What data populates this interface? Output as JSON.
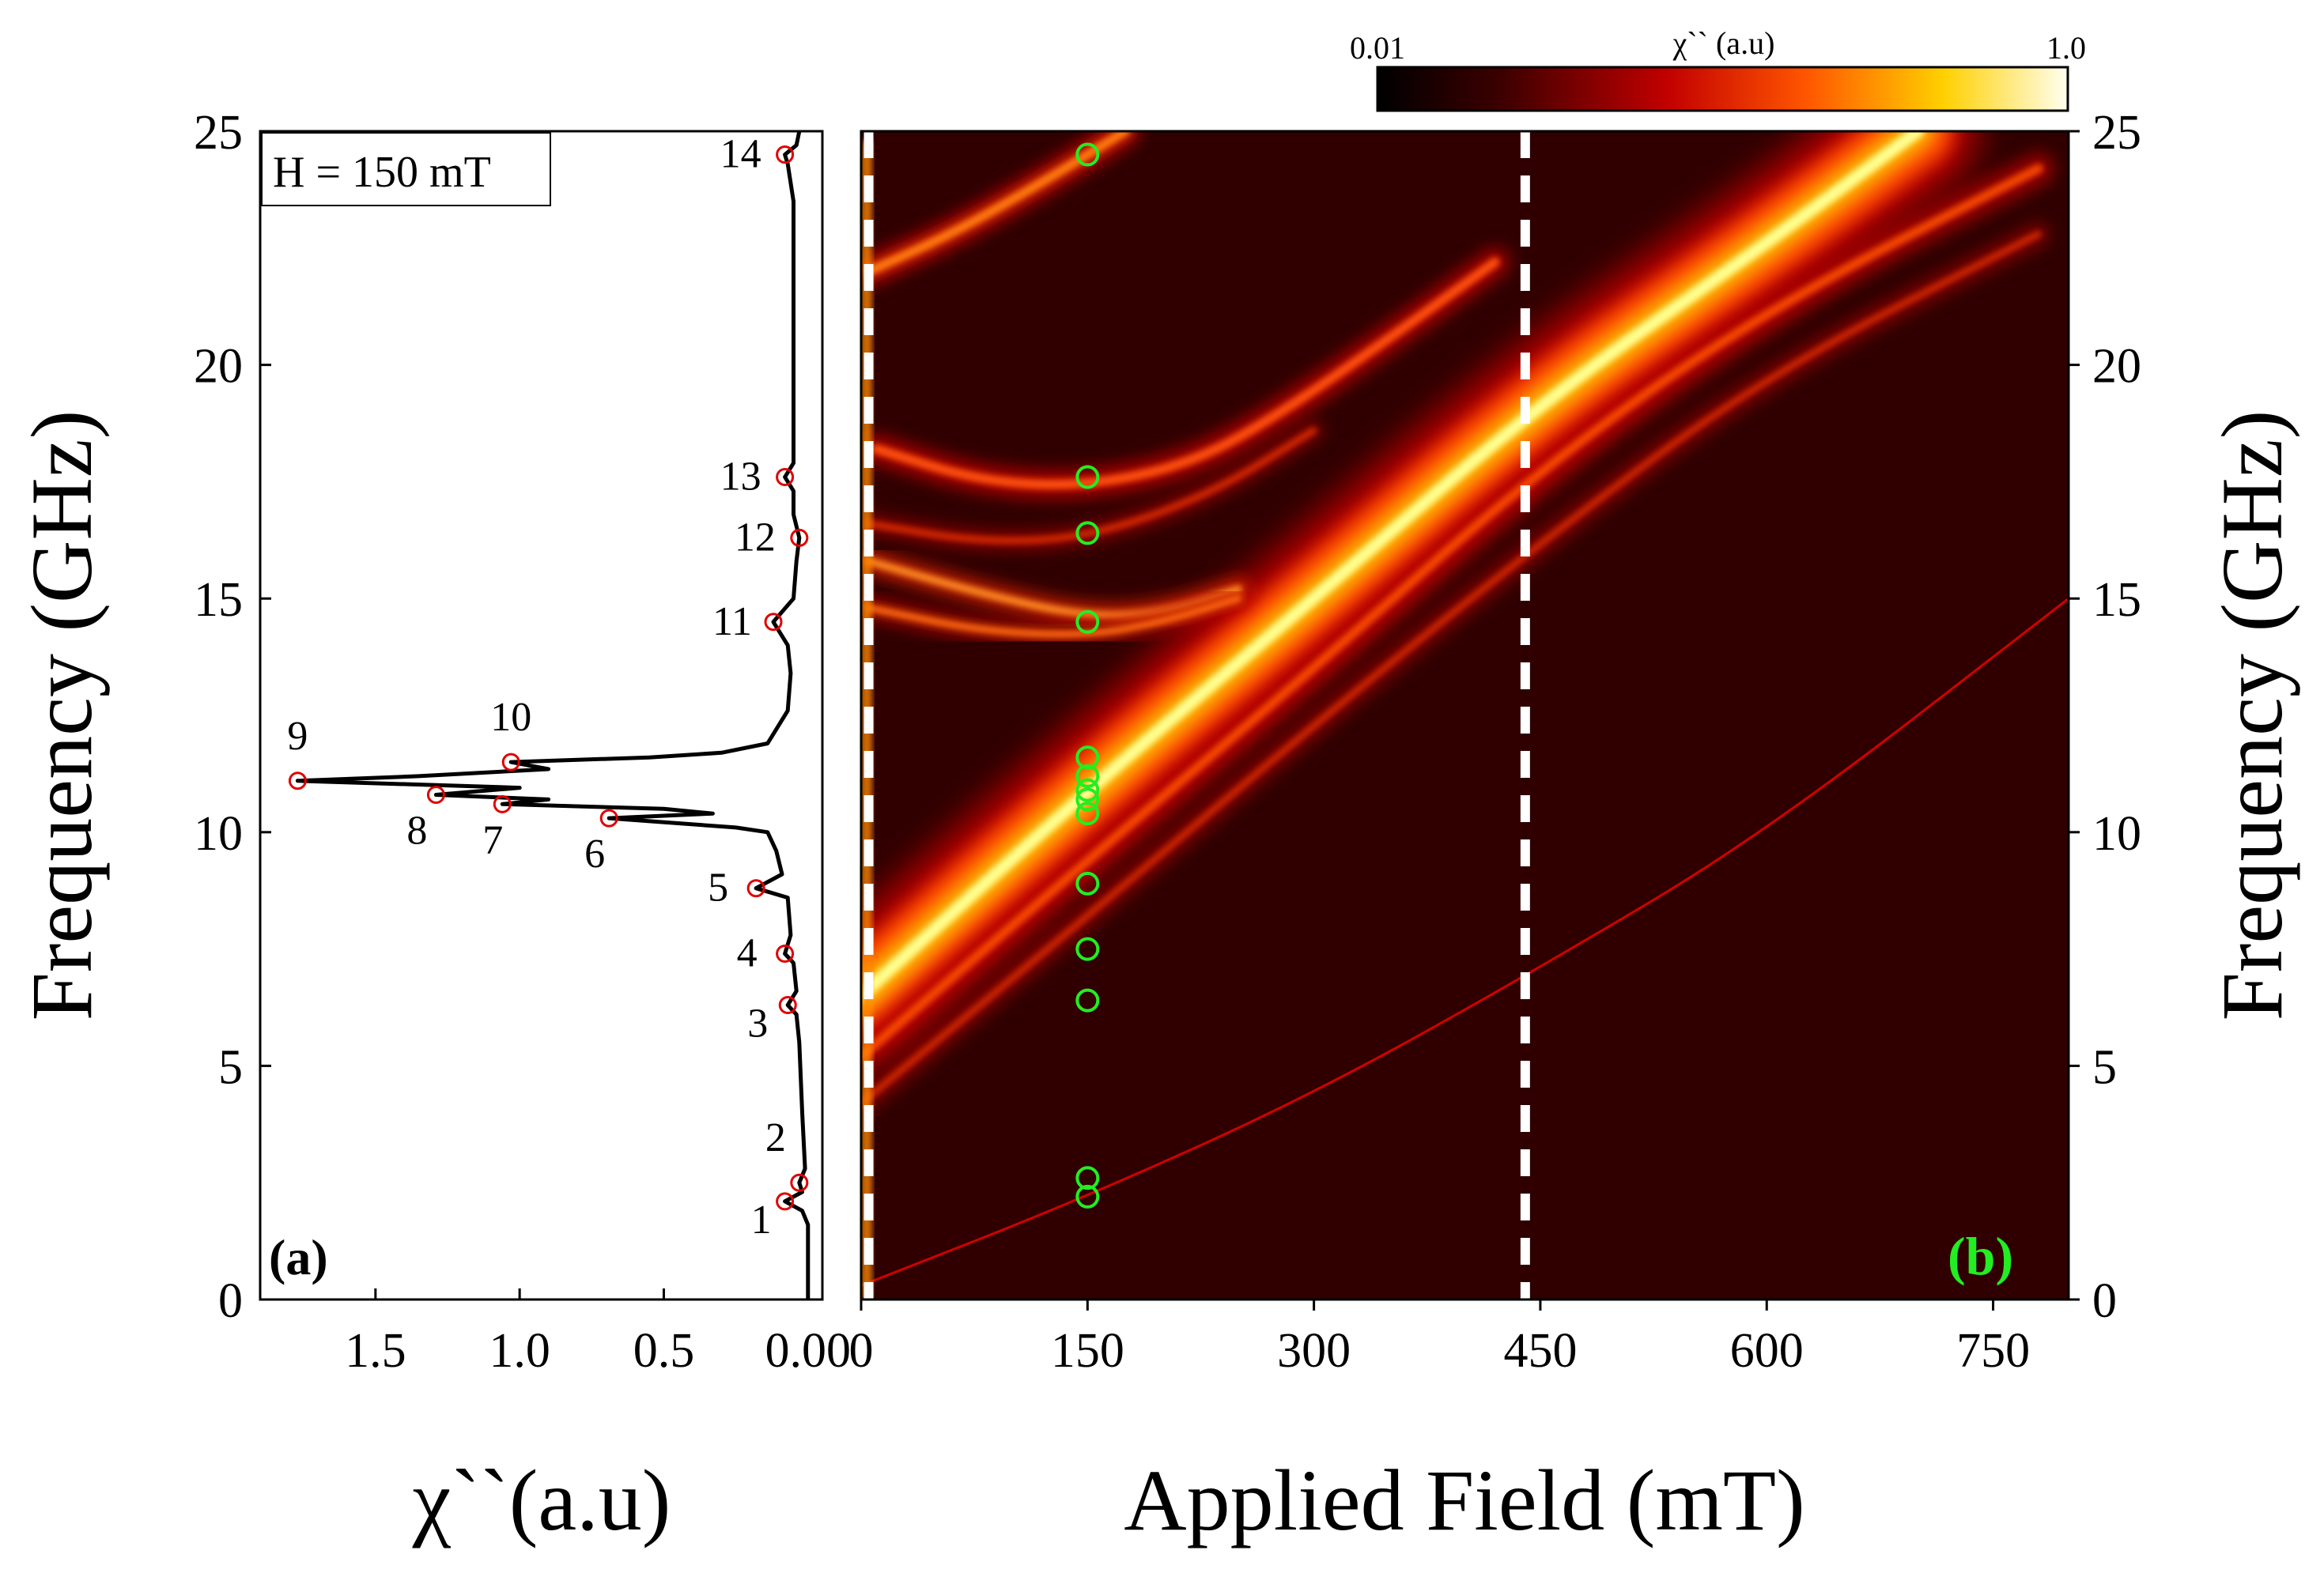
{
  "chart_data": [
    {
      "type": "line",
      "panel_label": "(a)",
      "legend_text": "H = 150 mT",
      "xlabel": "χ``(a.u)",
      "ylabel": "Frequency (GHz)",
      "xlim": [
        1.9,
        -0.05
      ],
      "ylim": [
        0,
        25
      ],
      "x_ticks": [
        "1.5",
        "1.0",
        "0.5",
        "0.00"
      ],
      "x_tick_values": [
        1.5,
        1.0,
        0.5,
        0.0
      ],
      "y_ticks": [
        "0",
        "5",
        "10",
        "15",
        "20",
        "25"
      ],
      "y_tick_values": [
        0,
        5,
        10,
        15,
        20,
        25
      ],
      "peaks": [
        {
          "label": "1",
          "x": 0.08,
          "y": 2.1
        },
        {
          "label": "2",
          "x": 0.03,
          "y": 2.5
        },
        {
          "label": "3",
          "x": 0.07,
          "y": 6.3
        },
        {
          "label": "4",
          "x": 0.08,
          "y": 7.4
        },
        {
          "label": "5",
          "x": 0.18,
          "y": 8.8
        },
        {
          "label": "6",
          "x": 0.69,
          "y": 10.3
        },
        {
          "label": "7",
          "x": 1.06,
          "y": 10.6
        },
        {
          "label": "8",
          "x": 1.29,
          "y": 10.8
        },
        {
          "label": "9",
          "x": 1.77,
          "y": 11.1
        },
        {
          "label": "10",
          "x": 1.03,
          "y": 11.5
        },
        {
          "label": "11",
          "x": 0.12,
          "y": 14.5
        },
        {
          "label": "12",
          "x": 0.03,
          "y": 16.3
        },
        {
          "label": "13",
          "x": 0.08,
          "y": 17.6
        },
        {
          "label": "14",
          "x": 0.08,
          "y": 24.5
        }
      ],
      "curve": [
        {
          "x": 0.0,
          "y": 0.0
        },
        {
          "x": 0.0,
          "y": 1.6
        },
        {
          "x": 0.02,
          "y": 1.9
        },
        {
          "x": 0.08,
          "y": 2.1
        },
        {
          "x": 0.02,
          "y": 2.3
        },
        {
          "x": 0.03,
          "y": 2.5
        },
        {
          "x": 0.01,
          "y": 2.8
        },
        {
          "x": 0.02,
          "y": 4.0
        },
        {
          "x": 0.03,
          "y": 5.5
        },
        {
          "x": 0.04,
          "y": 6.1
        },
        {
          "x": 0.07,
          "y": 6.3
        },
        {
          "x": 0.04,
          "y": 6.6
        },
        {
          "x": 0.05,
          "y": 7.2
        },
        {
          "x": 0.08,
          "y": 7.4
        },
        {
          "x": 0.06,
          "y": 7.8
        },
        {
          "x": 0.07,
          "y": 8.6
        },
        {
          "x": 0.18,
          "y": 8.8
        },
        {
          "x": 0.09,
          "y": 9.1
        },
        {
          "x": 0.11,
          "y": 9.6
        },
        {
          "x": 0.14,
          "y": 10.0
        },
        {
          "x": 0.25,
          "y": 10.1
        },
        {
          "x": 0.69,
          "y": 10.3
        },
        {
          "x": 0.33,
          "y": 10.4
        },
        {
          "x": 0.5,
          "y": 10.5
        },
        {
          "x": 1.06,
          "y": 10.6
        },
        {
          "x": 0.9,
          "y": 10.7
        },
        {
          "x": 1.29,
          "y": 10.8
        },
        {
          "x": 1.0,
          "y": 10.95
        },
        {
          "x": 1.77,
          "y": 11.1
        },
        {
          "x": 1.35,
          "y": 11.2
        },
        {
          "x": 0.9,
          "y": 11.35
        },
        {
          "x": 1.03,
          "y": 11.5
        },
        {
          "x": 0.55,
          "y": 11.6
        },
        {
          "x": 0.3,
          "y": 11.7
        },
        {
          "x": 0.14,
          "y": 11.9
        },
        {
          "x": 0.07,
          "y": 12.6
        },
        {
          "x": 0.06,
          "y": 13.4
        },
        {
          "x": 0.07,
          "y": 14.0
        },
        {
          "x": 0.12,
          "y": 14.5
        },
        {
          "x": 0.05,
          "y": 15.0
        },
        {
          "x": 0.04,
          "y": 15.8
        },
        {
          "x": 0.03,
          "y": 16.3
        },
        {
          "x": 0.05,
          "y": 16.8
        },
        {
          "x": 0.05,
          "y": 17.3
        },
        {
          "x": 0.08,
          "y": 17.6
        },
        {
          "x": 0.05,
          "y": 17.9
        },
        {
          "x": 0.05,
          "y": 19.0
        },
        {
          "x": 0.05,
          "y": 21.5
        },
        {
          "x": 0.05,
          "y": 23.5
        },
        {
          "x": 0.07,
          "y": 24.3
        },
        {
          "x": 0.08,
          "y": 24.5
        },
        {
          "x": 0.04,
          "y": 24.7
        },
        {
          "x": 0.03,
          "y": 25.0
        }
      ]
    },
    {
      "type": "heatmap",
      "panel_label": "(b)",
      "xlabel": "Applied Field (mT)",
      "ylabel": "Frequency (GHz)",
      "xlim": [
        0,
        800
      ],
      "ylim": [
        0,
        25
      ],
      "x_ticks": [
        "0",
        "150",
        "300",
        "450",
        "600",
        "750"
      ],
      "x_tick_values": [
        0,
        150,
        300,
        450,
        600,
        750
      ],
      "y_ticks": [
        "0",
        "5",
        "10",
        "15",
        "20",
        "25"
      ],
      "y_tick_values": [
        0,
        5,
        10,
        15,
        20,
        25
      ],
      "colorbar": {
        "label": "χ`` (a.u)",
        "min_label": "0.01",
        "max_label": "1.0"
      },
      "dashed_lines_x": [
        5,
        440
      ],
      "marker_field": 150,
      "marker_frequencies": [
        2.2,
        2.6,
        6.4,
        7.5,
        8.9,
        10.4,
        10.7,
        10.9,
        11.2,
        11.6,
        14.5,
        16.4,
        17.6,
        24.5
      ],
      "bands": [
        {
          "name": "main-mode",
          "points": [
            [
              0,
              6.5
            ],
            [
              150,
              10.9
            ],
            [
              300,
              15.0
            ],
            [
              450,
              19.2
            ],
            [
              600,
              22.6
            ],
            [
              700,
              25.0
            ]
          ]
        },
        {
          "name": "upper-mode-24",
          "points": [
            [
              5,
              22.0
            ],
            [
              60,
              22.8
            ],
            [
              120,
              23.9
            ],
            [
              175,
              25.0
            ]
          ]
        },
        {
          "name": "mode-17",
          "points": [
            [
              10,
              18.2
            ],
            [
              80,
              17.5
            ],
            [
              150,
              17.4
            ],
            [
              220,
              17.9
            ],
            [
              280,
              19.0
            ],
            [
              360,
              20.8
            ],
            [
              420,
              22.2
            ]
          ]
        },
        {
          "name": "mode-15",
          "points": [
            [
              5,
              15.8
            ],
            [
              80,
              15.1
            ],
            [
              150,
              14.6
            ],
            [
              200,
              14.7
            ],
            [
              250,
              15.2
            ]
          ]
        },
        {
          "name": "mode-14",
          "points": [
            [
              5,
              14.8
            ],
            [
              80,
              14.3
            ],
            [
              150,
              14.2
            ],
            [
              200,
              14.5
            ],
            [
              250,
              15.0
            ]
          ]
        },
        {
          "name": "mode-16",
          "points": [
            [
              5,
              16.6
            ],
            [
              80,
              16.2
            ],
            [
              150,
              16.3
            ],
            [
              230,
              17.2
            ],
            [
              300,
              18.6
            ]
          ]
        },
        {
          "name": "lower-branch",
          "points": [
            [
              0,
              5.2
            ],
            [
              150,
              9.4
            ],
            [
              300,
              13.5
            ],
            [
              450,
              17.8
            ],
            [
              600,
              21.2
            ],
            [
              780,
              24.2
            ]
          ]
        },
        {
          "name": "lower-branch-2",
          "points": [
            [
              0,
              4.2
            ],
            [
              150,
              8.2
            ],
            [
              300,
              12.3
            ],
            [
              450,
              16.2
            ],
            [
              600,
              19.8
            ],
            [
              780,
              22.8
            ]
          ]
        },
        {
          "name": "lowest-mode",
          "points": [
            [
              0,
              0.3
            ],
            [
              150,
              2.2
            ],
            [
              300,
              4.4
            ],
            [
              450,
              7.1
            ],
            [
              600,
              10.0
            ],
            [
              800,
              15.0
            ]
          ]
        }
      ]
    }
  ]
}
